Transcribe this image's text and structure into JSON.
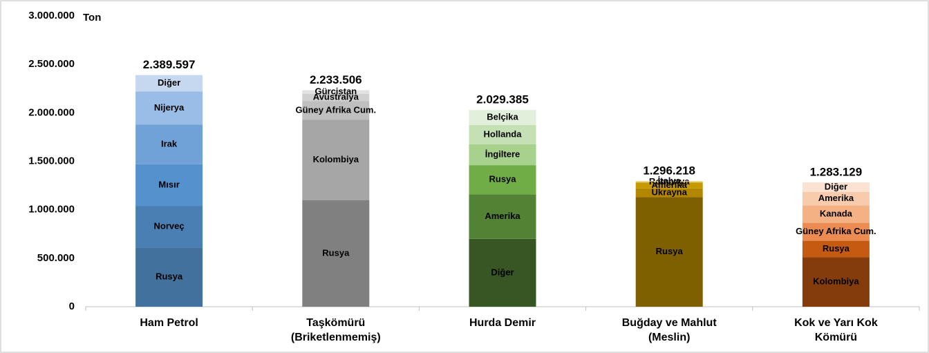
{
  "chart_data": {
    "type": "stacked-bar",
    "y_label": "Ton",
    "ylim": [
      0,
      3000000
    ],
    "yticks": [
      0,
      {
        "value": 500000,
        "label": "500.000"
      },
      {
        "value": 1000000,
        "label": "1.000.000"
      },
      {
        "value": 1500000,
        "label": "1.500.000"
      },
      {
        "value": 2000000,
        "label": "2.000.000"
      },
      {
        "value": 2500000,
        "label": "2.500.000"
      },
      {
        "value": 3000000,
        "label": "3.000.000"
      }
    ],
    "categories": [
      [
        "Ham Petrol"
      ],
      [
        "Taşkömürü",
        "(Briketlenmemiş)"
      ],
      [
        "Hurda Demir"
      ],
      [
        "Buğday ve Mahlut",
        "(Meslin)"
      ],
      [
        "Kok ve Yarı Kok",
        "Kömürü"
      ]
    ],
    "totals": [
      2389597,
      2233506,
      2029385,
      1296218,
      1283129
    ],
    "total_labels": [
      "2.389.597",
      "2.233.506",
      "2.029.385",
      "1.296.218",
      "1.283.129"
    ],
    "bars": [
      {
        "segments": [
          {
            "name": "Rusya",
            "value": 610000,
            "color": "#41719c"
          },
          {
            "name": "Norveç",
            "value": 430000,
            "color": "#4a7fb4"
          },
          {
            "name": "Mısır",
            "value": 430000,
            "color": "#5591cc"
          },
          {
            "name": "Irak",
            "value": 410000,
            "color": "#70a2d8"
          },
          {
            "name": "Nijerya",
            "value": 340000,
            "color": "#99bde6"
          },
          {
            "name": "Diğer",
            "value": 169597,
            "color": "#c5d8f0"
          }
        ]
      },
      {
        "segments": [
          {
            "name": "Rusya",
            "value": 1100000,
            "color": "#808080"
          },
          {
            "name": "Kolombiya",
            "value": 830000,
            "color": "#a6a6a6"
          },
          {
            "name": "Güney Afrika Cum.",
            "value": 190000,
            "color": "#bfbfbf"
          },
          {
            "name": "Avustralya",
            "value": 75000,
            "color": "#d0d0d0"
          },
          {
            "name": "Gürcistan",
            "value": 38506,
            "color": "#e2e2e2"
          }
        ]
      },
      {
        "segments": [
          {
            "name": "Diğer",
            "value": 700000,
            "color": "#375623"
          },
          {
            "name": "Amerika",
            "value": 460000,
            "color": "#548235"
          },
          {
            "name": "Rusya",
            "value": 300000,
            "color": "#70ad47"
          },
          {
            "name": "İngiltere",
            "value": 215000,
            "color": "#a9d18e"
          },
          {
            "name": "Hollanda",
            "value": 200000,
            "color": "#c5e0b4"
          },
          {
            "name": "Belçika",
            "value": 154385,
            "color": "#e2efda"
          }
        ]
      },
      {
        "segments": [
          {
            "name": "Rusya",
            "value": 1130000,
            "color": "#7f6000"
          },
          {
            "name": "Ukrayna",
            "value": 90000,
            "color": "#b38600"
          },
          {
            "name": "Amerika",
            "value": 60000,
            "color": "#c59a00"
          },
          {
            "name": "Romanya",
            "value": 10000,
            "color": "#e2c25a"
          },
          {
            "name": "İtalya",
            "value": 6218,
            "color": "#f0dc9a"
          }
        ]
      },
      {
        "segments": [
          {
            "name": "Kolombiya",
            "value": 510000,
            "color": "#843c0c"
          },
          {
            "name": "Rusya",
            "value": 170000,
            "color": "#c55a11"
          },
          {
            "name": "Güney Afrika Cum.",
            "value": 185000,
            "color": "#ec8c52"
          },
          {
            "name": "Kanada",
            "value": 180000,
            "color": "#f4b183"
          },
          {
            "name": "Amerika",
            "value": 140000,
            "color": "#f8cbad"
          },
          {
            "name": "Diğer",
            "value": 98129,
            "color": "#fbe2d2"
          }
        ]
      }
    ]
  }
}
